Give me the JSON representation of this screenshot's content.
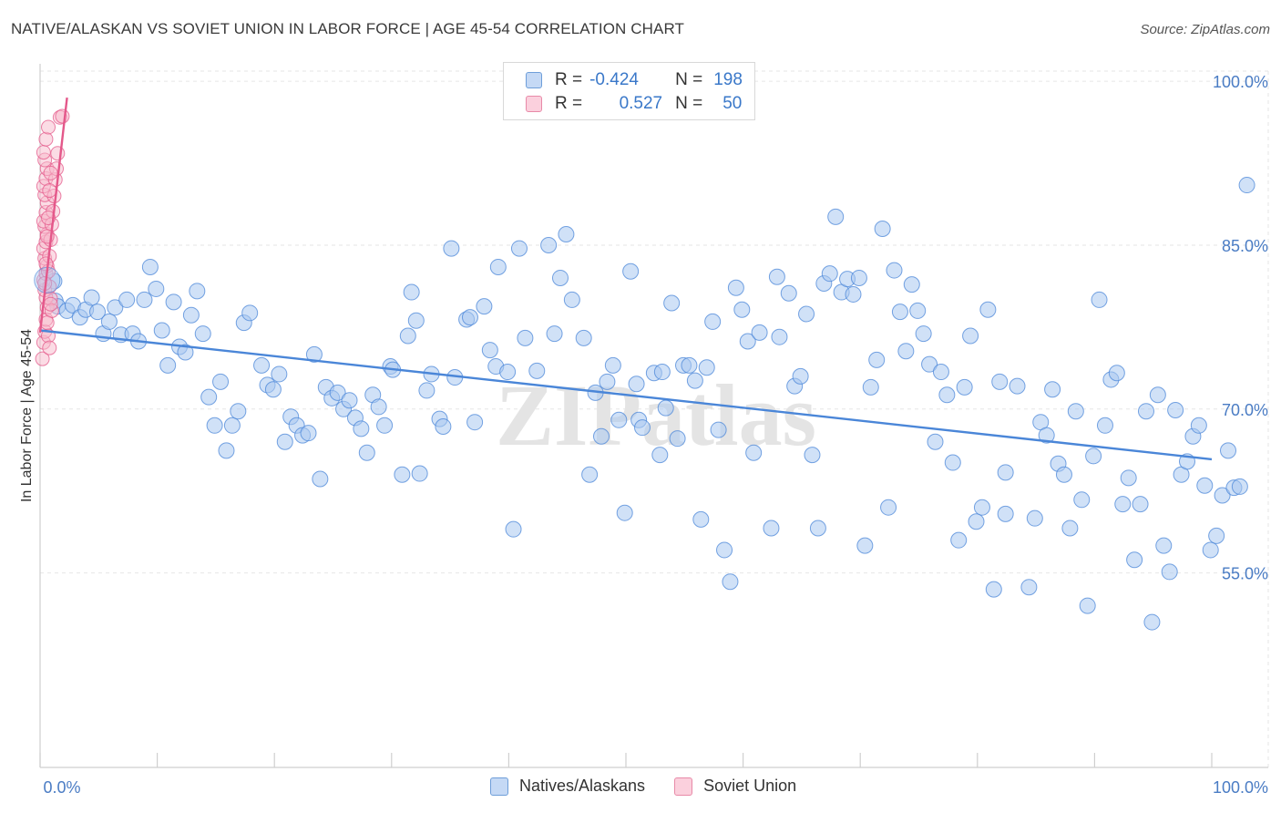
{
  "title": "NATIVE/ALASKAN VS SOVIET UNION IN LABOR FORCE | AGE 45-54 CORRELATION CHART",
  "source": "Source: ZipAtlas.com",
  "watermark": "ZIPatlas",
  "legend": {
    "rows": [
      {
        "r_label": "R =",
        "r_value": "-0.424",
        "n_label": "N =",
        "n_value": "198",
        "color": "#a9c8f0"
      },
      {
        "r_label": "R =",
        "r_value": "0.527",
        "n_label": "N =",
        "n_value": "50",
        "color": "#f7b9cc"
      }
    ]
  },
  "bottom_legend": [
    {
      "label": "Natives/Alaskans",
      "color": "#a9c8f0"
    },
    {
      "label": "Soviet Union",
      "color": "#f7b9cc"
    }
  ],
  "chart_data": {
    "type": "scatter",
    "title": "NATIVE/ALASKAN VS SOVIET UNION IN LABOR FORCE | AGE 45-54 CORRELATION CHART",
    "xlabel": "",
    "ylabel": "In Labor Force | Age 45-54",
    "xlim": [
      0,
      100
    ],
    "ylim": [
      37.2,
      101.6
    ],
    "x_tick_labels": [
      "0.0%",
      "100.0%"
    ],
    "y_ticks": [
      55,
      70,
      85,
      100
    ],
    "y_tick_labels": [
      "55.0%",
      "70.0%",
      "85.0%",
      "100.0%"
    ],
    "grid": true,
    "series": [
      {
        "name": "Natives/Alaskans",
        "color": "#4a86d8",
        "fill": "#a9c8f0",
        "trend": {
          "x": [
            0,
            100
          ],
          "y": [
            77.2,
            65.4
          ]
        },
        "points": [
          [
            1.2,
            81.7
          ],
          [
            1.3,
            79.9
          ],
          [
            1.5,
            79.4
          ],
          [
            2.3,
            79.0
          ],
          [
            2.8,
            79.5
          ],
          [
            3.4,
            78.4
          ],
          [
            3.9,
            79.1
          ],
          [
            4.4,
            80.2
          ],
          [
            4.9,
            78.9
          ],
          [
            5.4,
            76.9
          ],
          [
            5.9,
            78.0
          ],
          [
            6.4,
            79.3
          ],
          [
            6.9,
            76.8
          ],
          [
            7.4,
            80.0
          ],
          [
            7.9,
            76.9
          ],
          [
            8.4,
            76.2
          ],
          [
            8.9,
            80.0
          ],
          [
            9.4,
            83.0
          ],
          [
            9.9,
            81.0
          ],
          [
            10.4,
            77.2
          ],
          [
            10.9,
            74.0
          ],
          [
            11.4,
            79.8
          ],
          [
            11.9,
            75.7
          ],
          [
            12.4,
            75.2
          ],
          [
            12.9,
            78.6
          ],
          [
            13.4,
            80.8
          ],
          [
            13.9,
            76.9
          ],
          [
            14.4,
            71.1
          ],
          [
            14.9,
            68.5
          ],
          [
            15.4,
            72.5
          ],
          [
            15.9,
            66.2
          ],
          [
            16.4,
            68.5
          ],
          [
            16.9,
            69.8
          ],
          [
            17.4,
            77.9
          ],
          [
            17.9,
            78.8
          ],
          [
            18.9,
            74.0
          ],
          [
            19.4,
            72.2
          ],
          [
            19.9,
            71.8
          ],
          [
            20.4,
            73.2
          ],
          [
            20.9,
            67.0
          ],
          [
            21.4,
            69.3
          ],
          [
            21.9,
            68.5
          ],
          [
            22.4,
            67.6
          ],
          [
            22.9,
            67.8
          ],
          [
            23.4,
            75.0
          ],
          [
            23.9,
            63.6
          ],
          [
            24.4,
            72.0
          ],
          [
            24.9,
            71.0
          ],
          [
            25.4,
            71.5
          ],
          [
            25.9,
            70.0
          ],
          [
            26.4,
            70.8
          ],
          [
            26.9,
            69.2
          ],
          [
            27.4,
            68.2
          ],
          [
            27.9,
            66.0
          ],
          [
            28.4,
            71.3
          ],
          [
            28.9,
            70.2
          ],
          [
            29.4,
            68.5
          ],
          [
            29.9,
            73.9
          ],
          [
            30.1,
            73.6
          ],
          [
            30.9,
            64.0
          ],
          [
            31.4,
            76.7
          ],
          [
            31.7,
            80.7
          ],
          [
            32.1,
            78.1
          ],
          [
            32.4,
            64.1
          ],
          [
            33.4,
            73.2
          ],
          [
            33.0,
            71.7
          ],
          [
            34.1,
            69.1
          ],
          [
            34.4,
            68.4
          ],
          [
            35.1,
            84.7
          ],
          [
            35.4,
            72.9
          ],
          [
            36.4,
            78.2
          ],
          [
            36.7,
            78.4
          ],
          [
            37.1,
            68.8
          ],
          [
            37.9,
            79.4
          ],
          [
            38.4,
            75.4
          ],
          [
            38.9,
            73.9
          ],
          [
            39.1,
            83.0
          ],
          [
            39.9,
            73.4
          ],
          [
            40.4,
            59.0
          ],
          [
            40.9,
            84.7
          ],
          [
            41.4,
            76.5
          ],
          [
            42.4,
            73.5
          ],
          [
            43.4,
            85.0
          ],
          [
            43.9,
            76.9
          ],
          [
            44.4,
            82.0
          ],
          [
            44.9,
            86.0
          ],
          [
            45.4,
            80.0
          ],
          [
            46.4,
            76.5
          ],
          [
            46.9,
            64.0
          ],
          [
            47.4,
            71.5
          ],
          [
            47.9,
            67.5
          ],
          [
            48.4,
            72.5
          ],
          [
            48.9,
            74.0
          ],
          [
            49.4,
            69.0
          ],
          [
            49.9,
            60.5
          ],
          [
            50.4,
            82.6
          ],
          [
            50.9,
            72.3
          ],
          [
            51.1,
            69.0
          ],
          [
            51.4,
            68.3
          ],
          [
            52.4,
            73.3
          ],
          [
            52.9,
            65.8
          ],
          [
            53.1,
            73.4
          ],
          [
            53.4,
            70.1
          ],
          [
            53.9,
            79.7
          ],
          [
            54.4,
            67.3
          ],
          [
            54.9,
            74.0
          ],
          [
            55.4,
            74.0
          ],
          [
            55.9,
            72.6
          ],
          [
            56.4,
            59.9
          ],
          [
            56.9,
            73.8
          ],
          [
            57.4,
            78.0
          ],
          [
            57.9,
            68.1
          ],
          [
            58.4,
            57.1
          ],
          [
            58.9,
            54.2
          ],
          [
            59.4,
            81.1
          ],
          [
            59.9,
            79.1
          ],
          [
            60.4,
            76.2
          ],
          [
            60.9,
            66.0
          ],
          [
            61.4,
            77.0
          ],
          [
            62.4,
            59.1
          ],
          [
            62.9,
            82.1
          ],
          [
            63.1,
            76.6
          ],
          [
            63.9,
            80.6
          ],
          [
            64.4,
            72.1
          ],
          [
            64.9,
            73.0
          ],
          [
            65.4,
            78.7
          ],
          [
            65.9,
            65.8
          ],
          [
            66.4,
            59.1
          ],
          [
            66.9,
            81.5
          ],
          [
            67.4,
            82.4
          ],
          [
            67.9,
            87.6
          ],
          [
            68.4,
            80.7
          ],
          [
            68.9,
            81.9
          ],
          [
            69.4,
            80.5
          ],
          [
            69.9,
            82.0
          ],
          [
            70.4,
            57.5
          ],
          [
            70.9,
            72.0
          ],
          [
            71.4,
            74.5
          ],
          [
            71.9,
            86.5
          ],
          [
            72.4,
            61.0
          ],
          [
            72.9,
            82.7
          ],
          [
            73.4,
            78.9
          ],
          [
            73.9,
            75.3
          ],
          [
            74.4,
            81.4
          ],
          [
            74.9,
            79.0
          ],
          [
            75.4,
            76.9
          ],
          [
            75.9,
            74.1
          ],
          [
            76.4,
            67.0
          ],
          [
            76.9,
            73.4
          ],
          [
            77.4,
            71.3
          ],
          [
            77.9,
            65.1
          ],
          [
            78.4,
            58.0
          ],
          [
            78.9,
            72.0
          ],
          [
            79.4,
            76.7
          ],
          [
            79.9,
            59.7
          ],
          [
            80.4,
            61.0
          ],
          [
            80.9,
            79.1
          ],
          [
            81.4,
            53.5
          ],
          [
            81.9,
            72.5
          ],
          [
            82.4,
            64.2
          ],
          [
            82.4,
            60.4
          ],
          [
            83.4,
            72.1
          ],
          [
            84.4,
            53.7
          ],
          [
            84.9,
            60.0
          ],
          [
            85.4,
            68.8
          ],
          [
            85.9,
            67.6
          ],
          [
            86.4,
            71.8
          ],
          [
            86.9,
            65.0
          ],
          [
            87.4,
            64.0
          ],
          [
            87.9,
            59.1
          ],
          [
            88.4,
            69.8
          ],
          [
            88.9,
            61.7
          ],
          [
            89.4,
            52.0
          ],
          [
            89.9,
            65.7
          ],
          [
            90.4,
            80.0
          ],
          [
            90.9,
            68.5
          ],
          [
            91.4,
            72.7
          ],
          [
            91.9,
            73.3
          ],
          [
            92.4,
            61.3
          ],
          [
            92.9,
            63.7
          ],
          [
            93.4,
            56.2
          ],
          [
            93.9,
            61.3
          ],
          [
            94.4,
            69.8
          ],
          [
            94.9,
            50.5
          ],
          [
            95.4,
            71.3
          ],
          [
            95.9,
            57.5
          ],
          [
            96.4,
            55.1
          ],
          [
            96.9,
            69.9
          ],
          [
            97.4,
            64.0
          ],
          [
            97.9,
            65.2
          ],
          [
            98.4,
            67.5
          ],
          [
            98.9,
            68.5
          ],
          [
            99.4,
            63.0
          ],
          [
            99.9,
            57.1
          ],
          [
            100.4,
            58.4
          ],
          [
            100.9,
            62.1
          ],
          [
            101.4,
            66.2
          ],
          [
            101.9,
            62.8
          ],
          [
            102.4,
            62.9
          ],
          [
            103.0,
            90.5
          ]
        ]
      },
      {
        "name": "Soviet Union",
        "color": "#e4588a",
        "fill": "#f7b9cc",
        "trend": {
          "x": [
            0,
            2.3
          ],
          "y": [
            77.0,
            98.5
          ]
        },
        "points": [
          [
            0.2,
            74.6
          ],
          [
            0.3,
            76.1
          ],
          [
            0.4,
            77.1
          ],
          [
            0.5,
            78.2
          ],
          [
            0.6,
            79.3
          ],
          [
            0.5,
            80.2
          ],
          [
            0.4,
            80.9
          ],
          [
            0.3,
            81.8
          ],
          [
            0.5,
            82.4
          ],
          [
            0.6,
            83.1
          ],
          [
            0.4,
            83.8
          ],
          [
            0.3,
            84.7
          ],
          [
            0.5,
            85.3
          ],
          [
            0.6,
            86.0
          ],
          [
            0.4,
            86.7
          ],
          [
            0.3,
            87.2
          ],
          [
            0.5,
            88.0
          ],
          [
            0.6,
            88.9
          ],
          [
            0.4,
            89.6
          ],
          [
            0.3,
            90.4
          ],
          [
            0.5,
            91.1
          ],
          [
            0.6,
            92.0
          ],
          [
            0.4,
            92.8
          ],
          [
            0.3,
            93.5
          ],
          [
            0.5,
            94.7
          ],
          [
            0.7,
            95.8
          ],
          [
            0.8,
            81.2
          ],
          [
            0.9,
            80.1
          ],
          [
            1.0,
            79.0
          ],
          [
            0.7,
            82.6
          ],
          [
            0.8,
            84.0
          ],
          [
            0.9,
            85.5
          ],
          [
            1.0,
            86.9
          ],
          [
            1.1,
            88.1
          ],
          [
            1.2,
            89.5
          ],
          [
            1.3,
            91.0
          ],
          [
            1.4,
            92.0
          ],
          [
            1.5,
            93.4
          ],
          [
            0.6,
            77.9
          ],
          [
            0.7,
            76.7
          ],
          [
            0.8,
            75.6
          ],
          [
            0.9,
            79.6
          ],
          [
            0.4,
            81.5
          ],
          [
            0.5,
            83.3
          ],
          [
            0.6,
            85.8
          ],
          [
            0.7,
            87.5
          ],
          [
            0.8,
            90.0
          ],
          [
            0.9,
            91.6
          ],
          [
            1.7,
            96.7
          ],
          [
            1.9,
            96.8
          ]
        ]
      }
    ]
  }
}
